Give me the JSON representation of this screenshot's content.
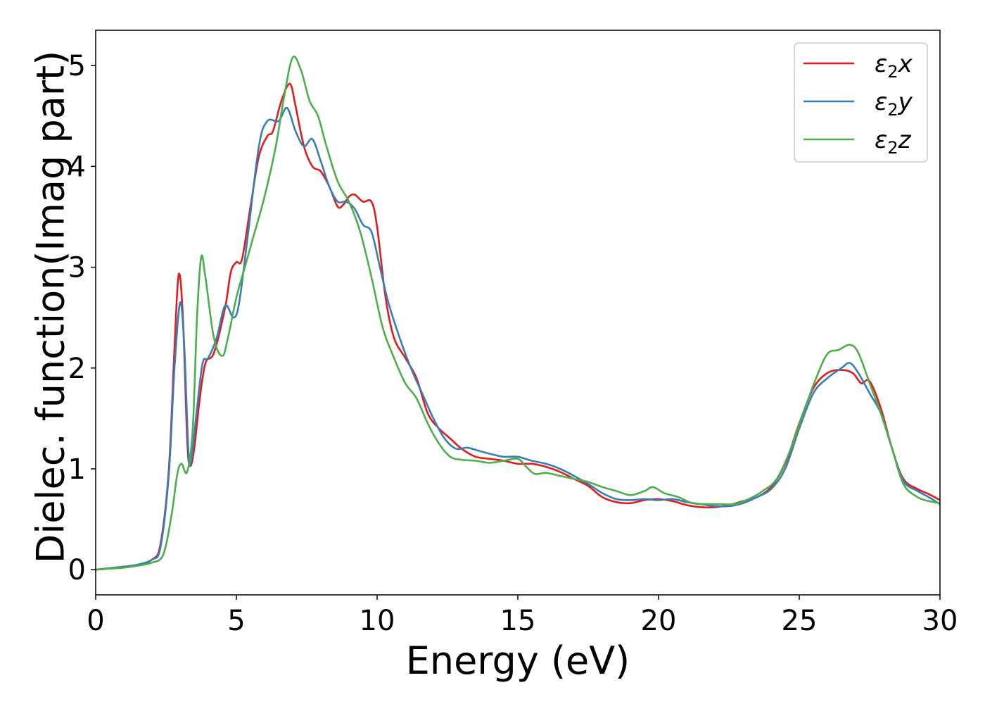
{
  "chart_data": {
    "type": "line",
    "xlabel": "Energy (eV)",
    "ylabel": "Dielec. function(Imag part)",
    "xlim": [
      0,
      30
    ],
    "ylim": [
      -0.25,
      5.35
    ],
    "x_ticks": [
      0,
      5,
      10,
      15,
      20,
      25,
      30
    ],
    "y_ticks": [
      0,
      1,
      2,
      3,
      4,
      5
    ],
    "grid": false,
    "legend_position": "top-right",
    "series": [
      {
        "name": "ε2x",
        "legend_base": "ε",
        "legend_sub": "2",
        "legend_suffix": "x",
        "color": "#e41a1c",
        "points": [
          [
            0,
            0
          ],
          [
            1,
            0.03
          ],
          [
            1.5,
            0.05
          ],
          [
            2,
            0.1
          ],
          [
            2.3,
            0.25
          ],
          [
            2.6,
            1.0
          ],
          [
            2.8,
            2.2
          ],
          [
            2.95,
            2.93
          ],
          [
            3.1,
            2.5
          ],
          [
            3.25,
            1.3
          ],
          [
            3.35,
            1.03
          ],
          [
            3.5,
            1.2
          ],
          [
            3.7,
            1.7
          ],
          [
            3.9,
            2.05
          ],
          [
            4.2,
            2.15
          ],
          [
            4.6,
            2.6
          ],
          [
            4.8,
            2.95
          ],
          [
            5.0,
            3.05
          ],
          [
            5.2,
            3.08
          ],
          [
            5.5,
            3.6
          ],
          [
            5.8,
            4.1
          ],
          [
            6.1,
            4.3
          ],
          [
            6.3,
            4.35
          ],
          [
            6.6,
            4.65
          ],
          [
            6.9,
            4.82
          ],
          [
            7.1,
            4.6
          ],
          [
            7.4,
            4.2
          ],
          [
            7.7,
            4.0
          ],
          [
            8.0,
            3.95
          ],
          [
            8.3,
            3.8
          ],
          [
            8.6,
            3.6
          ],
          [
            8.8,
            3.62
          ],
          [
            9.0,
            3.7
          ],
          [
            9.2,
            3.72
          ],
          [
            9.5,
            3.65
          ],
          [
            9.8,
            3.65
          ],
          [
            10.0,
            3.4
          ],
          [
            10.3,
            2.7
          ],
          [
            10.6,
            2.3
          ],
          [
            11.0,
            2.1
          ],
          [
            11.4,
            1.9
          ],
          [
            11.8,
            1.55
          ],
          [
            12.2,
            1.4
          ],
          [
            12.6,
            1.3
          ],
          [
            13.0,
            1.2
          ],
          [
            13.5,
            1.12
          ],
          [
            14.0,
            1.1
          ],
          [
            14.5,
            1.08
          ],
          [
            15.0,
            1.05
          ],
          [
            15.5,
            1.05
          ],
          [
            16.0,
            1.02
          ],
          [
            16.5,
            0.97
          ],
          [
            17.0,
            0.9
          ],
          [
            17.5,
            0.83
          ],
          [
            18.0,
            0.72
          ],
          [
            18.5,
            0.67
          ],
          [
            19.0,
            0.66
          ],
          [
            19.5,
            0.69
          ],
          [
            20.0,
            0.7
          ],
          [
            20.5,
            0.68
          ],
          [
            21.0,
            0.64
          ],
          [
            21.5,
            0.62
          ],
          [
            22.0,
            0.62
          ],
          [
            22.5,
            0.64
          ],
          [
            23.0,
            0.68
          ],
          [
            23.5,
            0.72
          ],
          [
            24.0,
            0.82
          ],
          [
            24.5,
            1.05
          ],
          [
            25.0,
            1.45
          ],
          [
            25.5,
            1.8
          ],
          [
            26.0,
            1.95
          ],
          [
            26.5,
            1.98
          ],
          [
            26.9,
            1.95
          ],
          [
            27.2,
            1.85
          ],
          [
            27.5,
            1.87
          ],
          [
            27.9,
            1.6
          ],
          [
            28.3,
            1.2
          ],
          [
            28.7,
            0.9
          ],
          [
            29.2,
            0.8
          ],
          [
            29.6,
            0.75
          ],
          [
            30.0,
            0.69
          ]
        ]
      },
      {
        "name": "ε2y",
        "legend_base": "ε",
        "legend_sub": "2",
        "legend_suffix": "y",
        "color": "#377eb8",
        "points": [
          [
            0,
            0
          ],
          [
            1,
            0.03
          ],
          [
            1.5,
            0.05
          ],
          [
            2,
            0.1
          ],
          [
            2.3,
            0.22
          ],
          [
            2.6,
            0.95
          ],
          [
            2.8,
            2.0
          ],
          [
            3.0,
            2.65
          ],
          [
            3.15,
            2.2
          ],
          [
            3.3,
            1.15
          ],
          [
            3.4,
            1.1
          ],
          [
            3.6,
            1.6
          ],
          [
            3.8,
            2.05
          ],
          [
            4.0,
            2.1
          ],
          [
            4.3,
            2.3
          ],
          [
            4.6,
            2.62
          ],
          [
            4.9,
            2.5
          ],
          [
            5.1,
            2.65
          ],
          [
            5.4,
            3.3
          ],
          [
            5.8,
            4.2
          ],
          [
            6.1,
            4.45
          ],
          [
            6.5,
            4.45
          ],
          [
            6.8,
            4.58
          ],
          [
            7.1,
            4.35
          ],
          [
            7.4,
            4.2
          ],
          [
            7.7,
            4.27
          ],
          [
            8.0,
            4.05
          ],
          [
            8.3,
            3.8
          ],
          [
            8.6,
            3.65
          ],
          [
            8.9,
            3.65
          ],
          [
            9.2,
            3.58
          ],
          [
            9.5,
            3.42
          ],
          [
            9.8,
            3.35
          ],
          [
            10.1,
            3.0
          ],
          [
            10.4,
            2.65
          ],
          [
            10.8,
            2.3
          ],
          [
            11.2,
            2.0
          ],
          [
            11.6,
            1.75
          ],
          [
            12.0,
            1.5
          ],
          [
            12.4,
            1.3
          ],
          [
            12.8,
            1.2
          ],
          [
            13.2,
            1.21
          ],
          [
            13.6,
            1.18
          ],
          [
            14.0,
            1.15
          ],
          [
            14.5,
            1.12
          ],
          [
            15.0,
            1.12
          ],
          [
            15.5,
            1.08
          ],
          [
            16.0,
            1.05
          ],
          [
            16.5,
            1.0
          ],
          [
            17.0,
            0.93
          ],
          [
            17.5,
            0.85
          ],
          [
            18.0,
            0.76
          ],
          [
            18.5,
            0.7
          ],
          [
            19.0,
            0.69
          ],
          [
            19.5,
            0.7
          ],
          [
            20.0,
            0.69
          ],
          [
            20.5,
            0.7
          ],
          [
            21.0,
            0.67
          ],
          [
            21.5,
            0.65
          ],
          [
            22.0,
            0.63
          ],
          [
            22.5,
            0.63
          ],
          [
            23.0,
            0.66
          ],
          [
            23.5,
            0.72
          ],
          [
            24.0,
            0.8
          ],
          [
            24.5,
            1.0
          ],
          [
            25.0,
            1.4
          ],
          [
            25.5,
            1.75
          ],
          [
            26.0,
            1.9
          ],
          [
            26.5,
            2.0
          ],
          [
            26.8,
            2.05
          ],
          [
            27.1,
            1.95
          ],
          [
            27.5,
            1.75
          ],
          [
            27.9,
            1.55
          ],
          [
            28.3,
            1.2
          ],
          [
            28.7,
            0.88
          ],
          [
            29.2,
            0.78
          ],
          [
            29.6,
            0.72
          ],
          [
            30.0,
            0.65
          ]
        ]
      },
      {
        "name": "ε2z",
        "legend_base": "ε",
        "legend_sub": "2",
        "legend_suffix": "z",
        "color": "#4daf4a",
        "points": [
          [
            0,
            0
          ],
          [
            1,
            0.02
          ],
          [
            1.5,
            0.04
          ],
          [
            2,
            0.07
          ],
          [
            2.4,
            0.15
          ],
          [
            2.7,
            0.55
          ],
          [
            2.9,
            0.95
          ],
          [
            3.05,
            1.05
          ],
          [
            3.25,
            0.97
          ],
          [
            3.45,
            1.4
          ],
          [
            3.6,
            2.5
          ],
          [
            3.75,
            3.1
          ],
          [
            3.9,
            2.9
          ],
          [
            4.2,
            2.3
          ],
          [
            4.5,
            2.12
          ],
          [
            4.7,
            2.3
          ],
          [
            5.0,
            2.7
          ],
          [
            5.3,
            3.0
          ],
          [
            5.6,
            3.3
          ],
          [
            6.0,
            3.7
          ],
          [
            6.4,
            4.2
          ],
          [
            6.7,
            4.7
          ],
          [
            7.0,
            5.08
          ],
          [
            7.3,
            4.95
          ],
          [
            7.6,
            4.65
          ],
          [
            7.9,
            4.5
          ],
          [
            8.2,
            4.2
          ],
          [
            8.6,
            3.85
          ],
          [
            9.0,
            3.65
          ],
          [
            9.4,
            3.35
          ],
          [
            9.8,
            2.9
          ],
          [
            10.2,
            2.4
          ],
          [
            10.6,
            2.1
          ],
          [
            11.0,
            1.85
          ],
          [
            11.4,
            1.7
          ],
          [
            11.8,
            1.45
          ],
          [
            12.2,
            1.25
          ],
          [
            12.6,
            1.12
          ],
          [
            13.0,
            1.09
          ],
          [
            13.5,
            1.08
          ],
          [
            14.0,
            1.06
          ],
          [
            14.5,
            1.08
          ],
          [
            15.0,
            1.1
          ],
          [
            15.3,
            1.02
          ],
          [
            15.6,
            0.95
          ],
          [
            16.0,
            0.96
          ],
          [
            16.5,
            0.93
          ],
          [
            17.0,
            0.9
          ],
          [
            17.5,
            0.87
          ],
          [
            18.0,
            0.82
          ],
          [
            18.5,
            0.78
          ],
          [
            19.0,
            0.74
          ],
          [
            19.5,
            0.78
          ],
          [
            19.8,
            0.82
          ],
          [
            20.2,
            0.76
          ],
          [
            20.7,
            0.72
          ],
          [
            21.2,
            0.66
          ],
          [
            21.7,
            0.65
          ],
          [
            22.2,
            0.65
          ],
          [
            22.7,
            0.65
          ],
          [
            23.2,
            0.7
          ],
          [
            23.7,
            0.78
          ],
          [
            24.2,
            0.9
          ],
          [
            24.7,
            1.2
          ],
          [
            25.2,
            1.6
          ],
          [
            25.6,
            1.9
          ],
          [
            26.0,
            2.14
          ],
          [
            26.4,
            2.18
          ],
          [
            26.8,
            2.23
          ],
          [
            27.1,
            2.15
          ],
          [
            27.5,
            1.85
          ],
          [
            27.9,
            1.55
          ],
          [
            28.3,
            1.2
          ],
          [
            28.7,
            0.85
          ],
          [
            29.2,
            0.72
          ],
          [
            29.6,
            0.68
          ],
          [
            30.0,
            0.66
          ]
        ]
      }
    ]
  }
}
